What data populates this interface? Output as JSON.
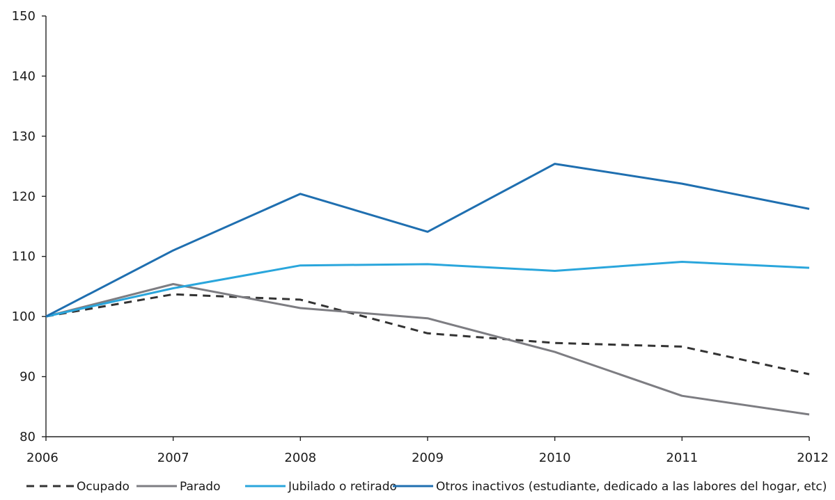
{
  "chart_data": {
    "type": "line",
    "title": "",
    "xlabel": "",
    "ylabel": "",
    "x": [
      "2006",
      "2007",
      "2008",
      "2009",
      "2010",
      "2011",
      "2012"
    ],
    "ylim": [
      80,
      150
    ],
    "yticks": [
      "80",
      "90",
      "100",
      "110",
      "120",
      "130",
      "140",
      "150"
    ],
    "grid": false,
    "legend_position": "bottom",
    "series": [
      {
        "name": "Ocupado",
        "values": [
          100,
          103.7,
          102.8,
          97.2,
          95.6,
          95.0,
          90.4
        ],
        "color": "#333333",
        "dash": "dashed"
      },
      {
        "name": "Parado",
        "values": [
          100,
          105.4,
          101.4,
          99.7,
          94.1,
          86.8,
          83.7
        ],
        "color": "#7d7d82",
        "dash": "solid"
      },
      {
        "name": "Jubilado o retirado",
        "values": [
          100,
          104.7,
          108.5,
          108.7,
          107.6,
          109.1,
          108.1
        ],
        "color": "#2aa6dc",
        "dash": "solid"
      },
      {
        "name": "Otros inactivos (estudiante, dedicado a las labores del hogar, etc)",
        "values": [
          100,
          111.0,
          120.4,
          114.1,
          125.4,
          122.1,
          117.9
        ],
        "color": "#1f6fb0",
        "dash": "solid"
      }
    ]
  }
}
